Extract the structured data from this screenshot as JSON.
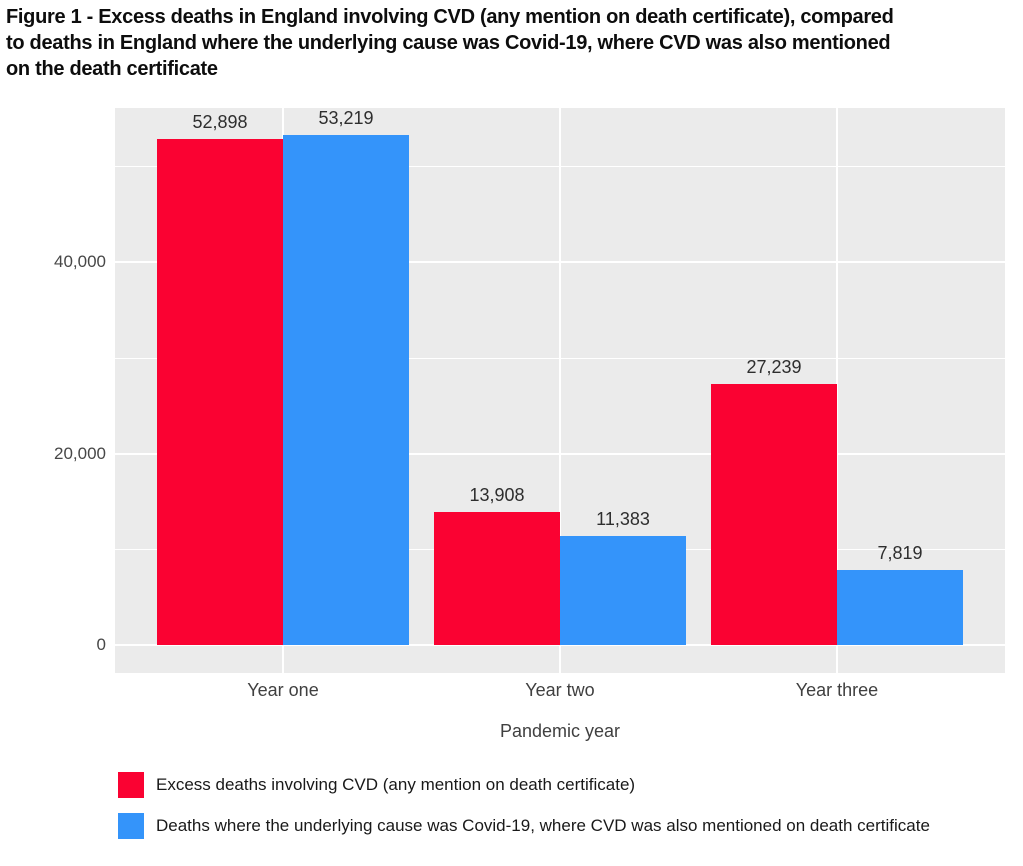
{
  "title": {
    "lines": [
      "Figure 1 - Excess deaths in England involving CVD (any mention on death certificate), compared",
      "to deaths in England where the underlying cause was Covid-19, where CVD was also mentioned",
      "on the death certificate"
    ]
  },
  "chart_data": {
    "type": "bar",
    "categories": [
      "Year one",
      "Year two",
      "Year three"
    ],
    "series": [
      {
        "name": "Excess deaths involving CVD (any mention on death certificate)",
        "color": "#fa0232",
        "values": [
          52898,
          13908,
          27239
        ],
        "value_labels": [
          "52,898",
          "13,908",
          "27,239"
        ]
      },
      {
        "name": "Deaths where the underlying cause was Covid-19, where CVD was also mentioned on death certificate",
        "color": "#3494fa",
        "values": [
          53219,
          11383,
          7819
        ],
        "value_labels": [
          "53,219",
          "11,383",
          "7,819"
        ]
      }
    ],
    "xlabel": "Pandemic year",
    "ylabel": "",
    "y_ticks": [
      {
        "value": 0,
        "label": "0"
      },
      {
        "value": 20000,
        "label": "20,000"
      },
      {
        "value": 40000,
        "label": "40,000"
      }
    ],
    "y_minor_gridlines": [
      10000,
      30000,
      50000
    ],
    "ylim": [
      0,
      56000
    ],
    "grid": "white gridlines on light gray panel",
    "legend_position": "bottom-left"
  },
  "colors": {
    "red_series": "#fa0232",
    "blue_series": "#3494fa",
    "panel_background": "#ebebeb",
    "gridline": "#ffffff"
  }
}
